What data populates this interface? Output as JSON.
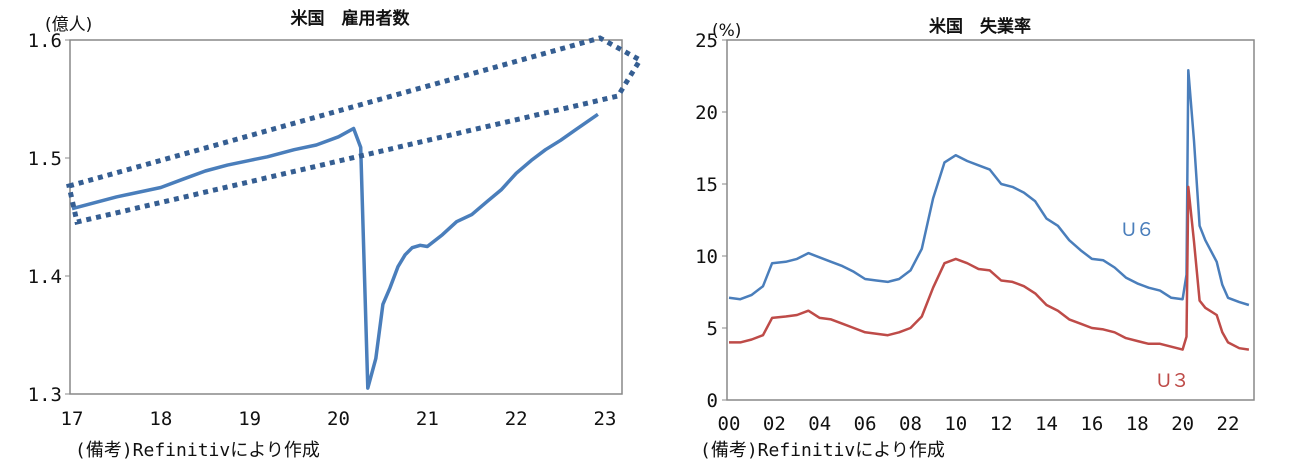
{
  "chart_data": [
    {
      "type": "line",
      "title": "米国　雇用者数",
      "ylabel": "(億人)",
      "note": "(備考)Refinitivにより作成",
      "ylim": [
        1.3,
        1.6
      ],
      "yticks": [
        "1.3",
        "1.4",
        "1.5",
        "1.6"
      ],
      "xticks": [
        "17",
        "18",
        "19",
        "20",
        "21",
        "22",
        "23"
      ],
      "series": [
        {
          "name": "雇用者数",
          "color": "#4a7ebb",
          "x": [
            2017.0,
            2017.5,
            2018.0,
            2018.25,
            2018.5,
            2018.75,
            2019.0,
            2019.2,
            2019.5,
            2019.75,
            2020.0,
            2020.17,
            2020.25,
            2020.33,
            2020.42,
            2020.5,
            2020.58,
            2020.67,
            2020.75,
            2020.83,
            2020.92,
            2021.0,
            2021.17,
            2021.33,
            2021.5,
            2021.67,
            2021.83,
            2022.0,
            2022.17,
            2022.33,
            2022.5,
            2022.67,
            2022.92
          ],
          "values": [
            1.457,
            1.467,
            1.475,
            1.482,
            1.489,
            1.494,
            1.498,
            1.501,
            1.507,
            1.511,
            1.518,
            1.525,
            1.509,
            1.305,
            1.33,
            1.376,
            1.39,
            1.408,
            1.418,
            1.424,
            1.426,
            1.425,
            1.435,
            1.446,
            1.452,
            1.463,
            1.473,
            1.487,
            1.498,
            1.507,
            1.515,
            1.524,
            1.537
          ]
        }
      ],
      "annotation": {
        "type": "dotted-trend-band",
        "color": "#355e92"
      }
    },
    {
      "type": "line",
      "title": "米国　失業率",
      "ylabel": "(%)",
      "note": "(備考)Refinitivにより作成",
      "ylim": [
        0,
        25
      ],
      "yticks": [
        "0",
        "5",
        "10",
        "15",
        "20",
        "25"
      ],
      "xticks": [
        "00",
        "02",
        "04",
        "06",
        "08",
        "10",
        "12",
        "14",
        "16",
        "18",
        "20",
        "22"
      ],
      "x": [
        2000.0,
        2000.5,
        2001.0,
        2001.5,
        2001.9,
        2002.5,
        2003.0,
        2003.5,
        2004.0,
        2004.5,
        2005.0,
        2005.5,
        2006.0,
        2006.5,
        2007.0,
        2007.5,
        2008.0,
        2008.5,
        2009.0,
        2009.5,
        2010.0,
        2010.5,
        2011.0,
        2011.5,
        2012.0,
        2012.5,
        2013.0,
        2013.5,
        2014.0,
        2014.5,
        2015.0,
        2015.5,
        2016.0,
        2016.5,
        2017.0,
        2017.5,
        2018.0,
        2018.5,
        2019.0,
        2019.5,
        2020.0,
        2020.17,
        2020.25,
        2020.5,
        2020.75,
        2021.0,
        2021.5,
        2021.75,
        2022.0,
        2022.5,
        2022.92
      ],
      "series": [
        {
          "name": "U6",
          "label": "U６",
          "color": "#4a7ebb",
          "values": [
            7.1,
            7.0,
            7.3,
            7.9,
            9.5,
            9.6,
            9.8,
            10.2,
            9.9,
            9.6,
            9.3,
            8.9,
            8.4,
            8.3,
            8.2,
            8.4,
            9.0,
            10.5,
            14.0,
            16.5,
            17.0,
            16.6,
            16.3,
            16.0,
            15.0,
            14.8,
            14.4,
            13.8,
            12.6,
            12.1,
            11.1,
            10.4,
            9.8,
            9.7,
            9.2,
            8.5,
            8.1,
            7.8,
            7.6,
            7.1,
            7.0,
            8.7,
            22.9,
            18.0,
            12.1,
            11.1,
            9.6,
            8.0,
            7.1,
            6.8,
            6.6
          ]
        },
        {
          "name": "U3",
          "label": "U３",
          "color": "#be4b48",
          "values": [
            4.0,
            4.0,
            4.2,
            4.5,
            5.7,
            5.8,
            5.9,
            6.2,
            5.7,
            5.6,
            5.3,
            5.0,
            4.7,
            4.6,
            4.5,
            4.7,
            5.0,
            5.8,
            7.8,
            9.5,
            9.8,
            9.5,
            9.1,
            9.0,
            8.3,
            8.2,
            7.9,
            7.4,
            6.6,
            6.2,
            5.6,
            5.3,
            5.0,
            4.9,
            4.7,
            4.3,
            4.1,
            3.9,
            3.9,
            3.7,
            3.5,
            4.4,
            14.8,
            11.0,
            6.9,
            6.4,
            5.9,
            4.7,
            4.0,
            3.6,
            3.5
          ]
        }
      ]
    }
  ]
}
